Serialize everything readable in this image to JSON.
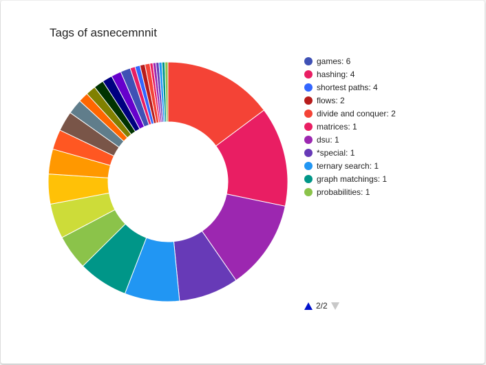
{
  "card": {
    "title": "Tags of asnecemnnit"
  },
  "chart_data": {
    "type": "pie",
    "donut": true,
    "title": "Tags of asnecemnnit",
    "slices": [
      {
        "value": 22,
        "color": "#f44336"
      },
      {
        "value": 20,
        "color": "#e91e63"
      },
      {
        "value": 18,
        "color": "#9c27b0"
      },
      {
        "value": 12,
        "color": "#673ab7"
      },
      {
        "value": 11,
        "color": "#2196f3"
      },
      {
        "value": 10,
        "color": "#009688"
      },
      {
        "value": 7,
        "color": "#8bc34a"
      },
      {
        "value": 7,
        "color": "#cddc39"
      },
      {
        "value": 6,
        "color": "#ffc107"
      },
      {
        "value": 5,
        "color": "#ff9800"
      },
      {
        "value": 4,
        "color": "#ff5722"
      },
      {
        "value": 4,
        "color": "#795548"
      },
      {
        "value": 3,
        "color": "#607d8b"
      },
      {
        "value": 2,
        "color": "#ff6600"
      },
      {
        "value": 2,
        "color": "#808000"
      },
      {
        "value": 2,
        "color": "#003300"
      },
      {
        "value": 2,
        "color": "#000080"
      },
      {
        "value": 2,
        "color": "#6600cc"
      },
      {
        "value": 2,
        "color": "#3f51b5"
      },
      {
        "value": 1,
        "color": "#e91e63"
      },
      {
        "value": 1,
        "color": "#3366ff"
      },
      {
        "value": 1,
        "color": "#b71c1c"
      },
      {
        "value": 1,
        "color": "#f44336"
      },
      {
        "value": 0.6,
        "color": "#e91e63"
      },
      {
        "value": 0.6,
        "color": "#9c27b0"
      },
      {
        "value": 0.6,
        "color": "#673ab7"
      },
      {
        "value": 0.6,
        "color": "#2196f3"
      },
      {
        "value": 0.6,
        "color": "#009688"
      },
      {
        "value": 0.6,
        "color": "#8bc34a"
      }
    ],
    "legend": {
      "placement": "right",
      "items": [
        {
          "label": "games: 6",
          "color": "#3f51b5"
        },
        {
          "label": "hashing: 4",
          "color": "#e91e63"
        },
        {
          "label": "shortest paths: 4",
          "color": "#3366ff"
        },
        {
          "label": "flows: 2",
          "color": "#b71c1c"
        },
        {
          "label": "divide and conquer: 2",
          "color": "#f44336"
        },
        {
          "label": "matrices: 1",
          "color": "#e91e63"
        },
        {
          "label": "dsu: 1",
          "color": "#9c27b0"
        },
        {
          "label": "*special: 1",
          "color": "#673ab7"
        },
        {
          "label": "ternary search: 1",
          "color": "#2196f3"
        },
        {
          "label": "graph matchings: 1",
          "color": "#009688"
        },
        {
          "label": "probabilities: 1",
          "color": "#8bc34a"
        }
      ]
    }
  },
  "pager": {
    "text": "2/2",
    "prev_icon": "triangle-up-icon",
    "next_icon": "triangle-down-icon"
  }
}
